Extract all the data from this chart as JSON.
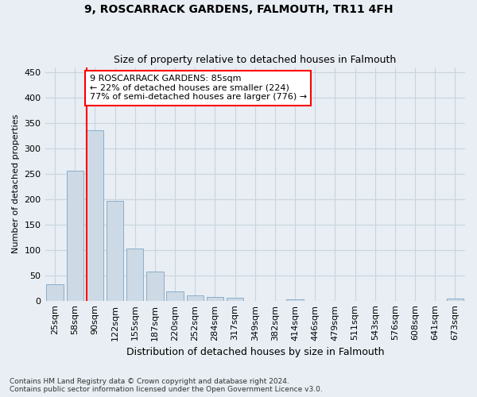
{
  "title": "9, ROSCARRACK GARDENS, FALMOUTH, TR11 4FH",
  "subtitle": "Size of property relative to detached houses in Falmouth",
  "xlabel": "Distribution of detached houses by size in Falmouth",
  "ylabel": "Number of detached properties",
  "bar_labels": [
    "25sqm",
    "58sqm",
    "90sqm",
    "122sqm",
    "155sqm",
    "187sqm",
    "220sqm",
    "252sqm",
    "284sqm",
    "317sqm",
    "349sqm",
    "382sqm",
    "414sqm",
    "446sqm",
    "479sqm",
    "511sqm",
    "543sqm",
    "576sqm",
    "608sqm",
    "641sqm",
    "673sqm"
  ],
  "bar_values": [
    33,
    256,
    335,
    197,
    103,
    57,
    18,
    10,
    8,
    5,
    0,
    0,
    3,
    0,
    0,
    0,
    0,
    0,
    0,
    0,
    4
  ],
  "bar_color": "#cdd9e5",
  "bar_edgecolor": "#8aaec8",
  "marker_label_line1": "9 ROSCARRACK GARDENS: 85sqm",
  "marker_label_line2": "← 22% of detached houses are smaller (224)",
  "marker_label_line3": "77% of semi-detached houses are larger (776) →",
  "annotation_box_color": "white",
  "annotation_box_edgecolor": "red",
  "vline_color": "red",
  "vline_x_index": 2,
  "bar_width": 0.85,
  "ylim": [
    0,
    460
  ],
  "yticks": [
    0,
    50,
    100,
    150,
    200,
    250,
    300,
    350,
    400,
    450
  ],
  "footer": "Contains HM Land Registry data © Crown copyright and database right 2024.\nContains public sector information licensed under the Open Government Licence v3.0.",
  "bg_color": "#e8eef4",
  "plot_bg_color": "#e8eef4",
  "grid_color": "#c8d4de",
  "title_fontsize": 10,
  "subtitle_fontsize": 9,
  "xlabel_fontsize": 9,
  "ylabel_fontsize": 8,
  "tick_fontsize": 8,
  "annotation_fontsize": 8
}
